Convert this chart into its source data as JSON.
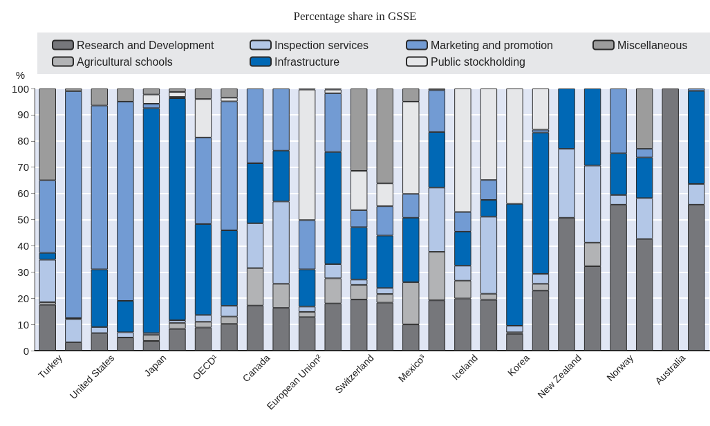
{
  "chart_data": {
    "type": "bar",
    "stacked": true,
    "title": "Percentage share in GSSE",
    "ylabel": "%",
    "categories": [
      "Turkey",
      null,
      "United States",
      null,
      "Japan",
      null,
      "OECD¹",
      null,
      "Canada",
      null,
      "European Union²",
      null,
      "Switzerland",
      null,
      "Mexico³",
      null,
      "Iceland",
      null,
      "Korea",
      null,
      "New Zealand",
      null,
      "Norway",
      null,
      "Australia",
      null
    ],
    "series": [
      {
        "name": "Research and Development",
        "color": "#76777b",
        "values": [
          17.5,
          3.2,
          6.7,
          5,
          3.7,
          8.3,
          8.8,
          10.2,
          17.2,
          16.3,
          12.8,
          18,
          19.5,
          18.3,
          10,
          19.2,
          19.9,
          19.4,
          6.4,
          22.9,
          50.7,
          32.2,
          55.7,
          42.6,
          100,
          55.7
        ]
      },
      {
        "name": "Agricultural schools",
        "color": "#b2b3b5",
        "values": [
          1,
          null,
          null,
          null,
          2.3,
          2.3,
          2.2,
          2.8,
          14.3,
          9.2,
          2,
          9.6,
          5.6,
          3.3,
          16.1,
          18.5,
          6.8,
          2.3,
          0.6,
          2.6,
          null,
          9,
          null,
          null,
          null,
          null
        ]
      },
      {
        "name": "Inspection services",
        "color": "#b3c7e7",
        "values": [
          16.2,
          8.8,
          2.3,
          2,
          0.7,
          1,
          2.6,
          4.1,
          17.1,
          31.4,
          2,
          5.4,
          2,
          2.3,
          null,
          24.5,
          5.7,
          29.4,
          2.5,
          3.8,
          26.3,
          29.4,
          3.7,
          15.6,
          null,
          7.9
        ]
      },
      {
        "name": "Infrastructure",
        "color": "#0068b5",
        "values": [
          2.6,
          0.4,
          22,
          12,
          85.8,
          84.7,
          34.7,
          28.8,
          22.9,
          19.4,
          14.2,
          42.8,
          20,
          20,
          24.6,
          21.2,
          13,
          6.4,
          46.5,
          53.9,
          23,
          29.4,
          15.9,
          15.5,
          null,
          35.5
        ]
      },
      {
        "name": "Marketing and promotion",
        "color": "#729bd3",
        "values": [
          27.7,
          86.6,
          62.5,
          76,
          1.7,
          0.5,
          33,
          49.2,
          28.5,
          23.7,
          18.8,
          22.4,
          6.5,
          11.2,
          9.1,
          16,
          7.5,
          7.6,
          null,
          1.1,
          null,
          null,
          24.7,
          3.3,
          null,
          0.9
        ]
      },
      {
        "name": "Public stockholding",
        "color": "#e6e7e9",
        "values": [
          null,
          null,
          null,
          null,
          3.5,
          1.9,
          14.7,
          1.4,
          null,
          null,
          49.8,
          1.4,
          15,
          8.7,
          35.2,
          null,
          47.1,
          34.9,
          44,
          15.7,
          null,
          null,
          null,
          null,
          null,
          null
        ]
      },
      {
        "name": "Miscellaneous",
        "color": "#9c9c9c",
        "values": [
          35,
          1,
          6.5,
          5,
          2.3,
          1.3,
          4,
          3.5,
          null,
          null,
          0.4,
          0.4,
          31.4,
          36.2,
          5,
          0.6,
          null,
          null,
          null,
          null,
          null,
          null,
          null,
          23,
          null,
          null
        ]
      }
    ],
    "ylim": [
      0,
      100
    ],
    "yticks": [
      0,
      10,
      20,
      30,
      40,
      50,
      60,
      70,
      80,
      90,
      100
    ],
    "grid": "y",
    "legend": "top"
  }
}
